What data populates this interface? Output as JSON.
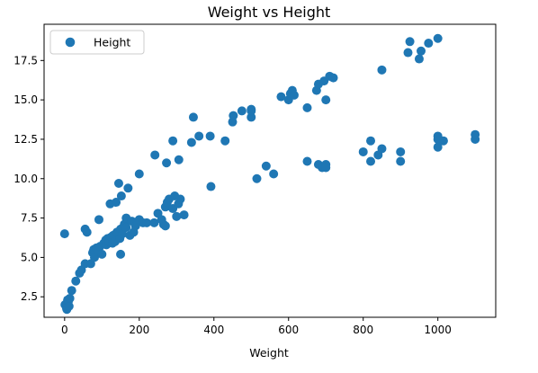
{
  "chart_data": {
    "type": "scatter",
    "title": "Weight  vs Height",
    "xlabel": "Weight",
    "ylabel": "",
    "xlim": [
      -55,
      1155
    ],
    "ylim": [
      1.2,
      19.8
    ],
    "xticks": [
      0,
      200,
      400,
      600,
      800,
      1000
    ],
    "yticks": [
      2.5,
      5.0,
      7.5,
      10.0,
      12.5,
      15.0,
      17.5
    ],
    "xtick_labels": [
      "0",
      "200",
      "400",
      "600",
      "800",
      "1000"
    ],
    "ytick_labels": [
      "2.5",
      "5.0",
      "7.5",
      "10.0",
      "12.5",
      "15.0",
      "17.5"
    ],
    "grid": false,
    "legend": {
      "position": "top-left",
      "entries": [
        "Height"
      ]
    },
    "colors": {
      "series": "#1f77b4",
      "frame": "#000000",
      "background": "#ffffff"
    },
    "series": [
      {
        "name": "Height",
        "points": [
          [
            0,
            6.5
          ],
          [
            1,
            2.0
          ],
          [
            5,
            1.8
          ],
          [
            6,
            1.7
          ],
          [
            8,
            2.3
          ],
          [
            10,
            2.2
          ],
          [
            12,
            1.9
          ],
          [
            14,
            2.4
          ],
          [
            19,
            2.9
          ],
          [
            30,
            3.5
          ],
          [
            40,
            4.0
          ],
          [
            45,
            4.2
          ],
          [
            55,
            4.6
          ],
          [
            55,
            6.8
          ],
          [
            60,
            6.6
          ],
          [
            70,
            4.6
          ],
          [
            75,
            5.3
          ],
          [
            78,
            5.5
          ],
          [
            80,
            5.0
          ],
          [
            85,
            5.6
          ],
          [
            90,
            5.4
          ],
          [
            92,
            7.4
          ],
          [
            95,
            5.7
          ],
          [
            100,
            5.2
          ],
          [
            105,
            5.9
          ],
          [
            110,
            6.1
          ],
          [
            112,
            5.8
          ],
          [
            115,
            6.2
          ],
          [
            120,
            6.0
          ],
          [
            122,
            8.4
          ],
          [
            125,
            6.3
          ],
          [
            128,
            5.9
          ],
          [
            130,
            6.4
          ],
          [
            135,
            6.0
          ],
          [
            138,
            8.5
          ],
          [
            140,
            6.6
          ],
          [
            145,
            9.7
          ],
          [
            148,
            6.2
          ],
          [
            150,
            5.2
          ],
          [
            150,
            6.8
          ],
          [
            152,
            8.9
          ],
          [
            155,
            6.5
          ],
          [
            160,
            7.1
          ],
          [
            165,
            6.9
          ],
          [
            165,
            7.5
          ],
          [
            170,
            9.4
          ],
          [
            175,
            6.4
          ],
          [
            180,
            7.3
          ],
          [
            185,
            6.6
          ],
          [
            190,
            7.0
          ],
          [
            200,
            7.4
          ],
          [
            200,
            10.3
          ],
          [
            210,
            7.2
          ],
          [
            220,
            7.2
          ],
          [
            240,
            7.2
          ],
          [
            242,
            11.5
          ],
          [
            250,
            7.8
          ],
          [
            260,
            7.4
          ],
          [
            265,
            7.1
          ],
          [
            270,
            7.0
          ],
          [
            270,
            8.2
          ],
          [
            273,
            11.0
          ],
          [
            275,
            8.5
          ],
          [
            280,
            8.7
          ],
          [
            290,
            12.4
          ],
          [
            290,
            8.1
          ],
          [
            295,
            8.9
          ],
          [
            300,
            7.6
          ],
          [
            305,
            8.4
          ],
          [
            306,
            11.2
          ],
          [
            310,
            8.7
          ],
          [
            320,
            7.7
          ],
          [
            340,
            12.3
          ],
          [
            345,
            13.9
          ],
          [
            360,
            12.7
          ],
          [
            390,
            12.7
          ],
          [
            392,
            9.5
          ],
          [
            430,
            12.4
          ],
          [
            450,
            13.6
          ],
          [
            452,
            14.0
          ],
          [
            475,
            14.3
          ],
          [
            500,
            13.9
          ],
          [
            500,
            14.4
          ],
          [
            500,
            14.3
          ],
          [
            515,
            10.0
          ],
          [
            540,
            10.8
          ],
          [
            560,
            10.3
          ],
          [
            580,
            15.2
          ],
          [
            600,
            15.0
          ],
          [
            605,
            15.4
          ],
          [
            610,
            15.6
          ],
          [
            615,
            15.3
          ],
          [
            650,
            11.1
          ],
          [
            650,
            14.5
          ],
          [
            675,
            15.6
          ],
          [
            680,
            10.9
          ],
          [
            680,
            16.0
          ],
          [
            690,
            10.7
          ],
          [
            695,
            16.2
          ],
          [
            700,
            10.9
          ],
          [
            700,
            10.7
          ],
          [
            700,
            15.0
          ],
          [
            710,
            16.5
          ],
          [
            720,
            16.4
          ],
          [
            800,
            11.7
          ],
          [
            820,
            11.1
          ],
          [
            820,
            12.4
          ],
          [
            840,
            11.5
          ],
          [
            850,
            11.9
          ],
          [
            850,
            16.9
          ],
          [
            900,
            11.1
          ],
          [
            900,
            11.7
          ],
          [
            920,
            18.0
          ],
          [
            925,
            18.7
          ],
          [
            950,
            17.6
          ],
          [
            955,
            18.1
          ],
          [
            975,
            18.6
          ],
          [
            1000,
            18.9
          ],
          [
            1000,
            12.0
          ],
          [
            1000,
            12.5
          ],
          [
            1000,
            12.7
          ],
          [
            1015,
            12.4
          ],
          [
            1100,
            12.5
          ],
          [
            1100,
            12.8
          ]
        ]
      }
    ]
  }
}
